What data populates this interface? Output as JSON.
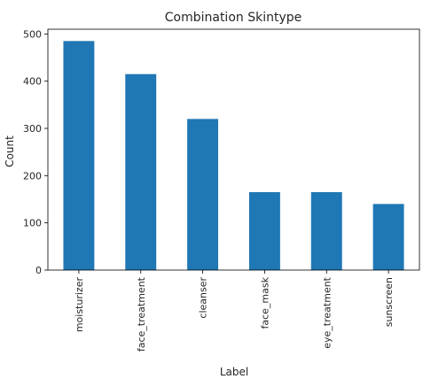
{
  "chart_data": {
    "type": "bar",
    "title": "Combination Skintype",
    "xlabel": "Label",
    "ylabel": "Count",
    "categories": [
      "moisturizer",
      "face_treatment",
      "cleanser",
      "face_mask",
      "eye_treatment",
      "sunscreen"
    ],
    "values": [
      485,
      415,
      320,
      165,
      165,
      140
    ],
    "ylim": [
      0,
      510
    ],
    "yticks": [
      "0",
      "100",
      "200",
      "300",
      "400",
      "500"
    ],
    "bar_color": "#1f77b4",
    "grid": false,
    "legend": "none"
  }
}
